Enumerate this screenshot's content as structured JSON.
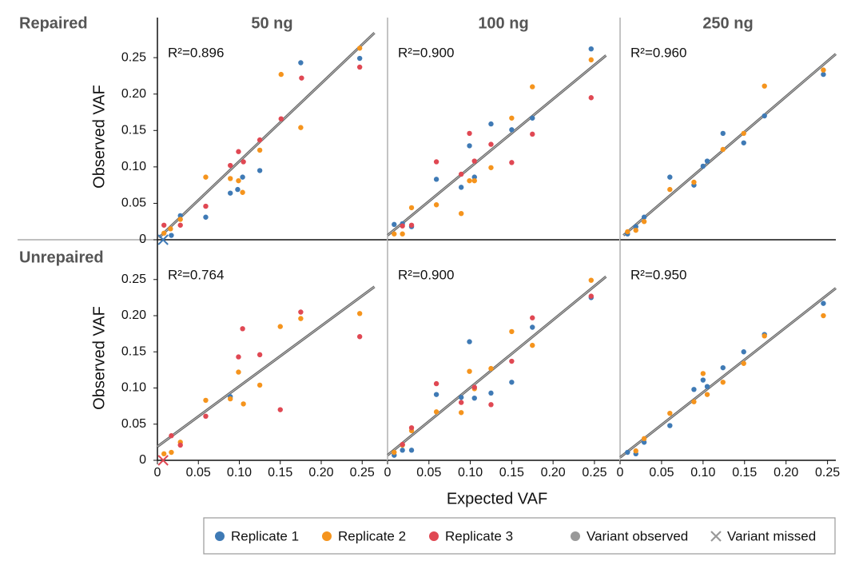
{
  "row_labels": [
    "Repaired",
    "Unrepaired"
  ],
  "legend": {
    "position": "bottom",
    "entries": [
      {
        "name": "Replicate 1",
        "color": "#3f7ab5",
        "marker": "circle"
      },
      {
        "name": "Replicate 2",
        "color": "#f5941d",
        "marker": "circle"
      },
      {
        "name": "Replicate 3",
        "color": "#e04853",
        "marker": "circle"
      },
      {
        "name": "Variant observed",
        "color": "#999999",
        "marker": "circle"
      },
      {
        "name": "Variant missed",
        "color": "#999999",
        "marker": "x"
      }
    ]
  },
  "chart_data": [
    {
      "type": "scatter",
      "title": "50 ng",
      "ylabel": "Observed VAF",
      "annotation": "R²=0.896",
      "xlim": [
        0,
        0.28
      ],
      "ylim": [
        0,
        0.305
      ],
      "yticks": [
        0,
        0.05,
        {
          "value": 0.1,
          "label": "0.10"
        },
        0.15,
        {
          "value": 0.2,
          "label": "0.20"
        },
        0.25
      ],
      "fit": {
        "x": [
          0.002,
          0.265
        ],
        "values": [
          0.003,
          0.284
        ]
      },
      "series": [
        {
          "x": [
            0.028,
            0.017,
            0.059,
            0.089,
            0.098,
            0.104,
            0.125,
            0.175,
            0.247
          ],
          "values": [
            0.033,
            0.006,
            0.031,
            0.064,
            0.069,
            0.086,
            0.095,
            0.243,
            0.249
          ],
          "missed_x": [
            0.007
          ],
          "missed_values": [
            0
          ]
        },
        {
          "x": [
            0.008,
            0.016,
            0.028,
            0.059,
            0.089,
            0.099,
            0.104,
            0.125,
            0.151,
            0.175,
            0.247
          ],
          "values": [
            0.009,
            0.015,
            0.028,
            0.086,
            0.084,
            0.081,
            0.065,
            0.123,
            0.227,
            0.154,
            0.263
          ]
        },
        {
          "x": [
            0.008,
            0.028,
            0.059,
            0.089,
            0.099,
            0.105,
            0.125,
            0.151,
            0.176,
            0.247
          ],
          "values": [
            0.02,
            0.02,
            0.046,
            0.102,
            0.121,
            0.107,
            0.137,
            0.166,
            0.222,
            0.237
          ]
        }
      ]
    },
    {
      "type": "scatter",
      "title": "100 ng",
      "annotation": "R²=0.900",
      "xlim": [
        0,
        0.28
      ],
      "ylim": [
        0,
        0.305
      ],
      "fit": {
        "x": [
          0,
          0.264
        ],
        "values": [
          0.006,
          0.253
        ]
      },
      "series": [
        {
          "x": [
            0.008,
            0.018,
            0.029,
            0.059,
            0.089,
            0.099,
            0.105,
            0.125,
            0.15,
            0.175,
            0.246
          ],
          "values": [
            0.021,
            0.022,
            0.018,
            0.083,
            0.072,
            0.129,
            0.086,
            0.159,
            0.151,
            0.167,
            0.262
          ]
        },
        {
          "x": [
            0.008,
            0.018,
            0.029,
            0.059,
            0.089,
            0.099,
            0.105,
            0.125,
            0.15,
            0.175,
            0.246
          ],
          "values": [
            0.008,
            0.008,
            0.044,
            0.048,
            0.036,
            0.081,
            0.081,
            0.099,
            0.167,
            0.21,
            0.247
          ]
        },
        {
          "x": [
            0.018,
            0.029,
            0.059,
            0.089,
            0.099,
            0.105,
            0.125,
            0.15,
            0.175,
            0.246
          ],
          "values": [
            0.019,
            0.02,
            0.107,
            0.09,
            0.146,
            0.108,
            0.131,
            0.106,
            0.145,
            0.195
          ]
        }
      ]
    },
    {
      "type": "scatter",
      "title": "250 ng",
      "annotation": "R²=0.960",
      "xlim": [
        0,
        0.26
      ],
      "ylim": [
        0,
        0.305
      ],
      "fit": {
        "x": [
          0.004,
          0.26
        ],
        "values": [
          0.006,
          0.255
        ]
      },
      "series": [
        {
          "x": [
            0.009,
            0.019,
            0.029,
            0.06,
            0.089,
            0.1,
            0.105,
            0.124,
            0.149,
            0.174,
            0.245
          ],
          "values": [
            0.008,
            0.018,
            0.031,
            0.086,
            0.075,
            0.101,
            0.108,
            0.146,
            0.133,
            0.17,
            0.227
          ]
        },
        {
          "x": [
            0.009,
            0.019,
            0.029,
            0.06,
            0.089,
            0.124,
            0.149,
            0.174,
            0.245
          ],
          "values": [
            0.011,
            0.013,
            0.025,
            0.069,
            0.079,
            0.124,
            0.146,
            0.211,
            0.233
          ]
        },
        {
          "x": [],
          "values": []
        }
      ]
    },
    {
      "type": "scatter",
      "ylabel": "Observed VAF",
      "annotation": "R²=0.764",
      "xlim": [
        0,
        0.28
      ],
      "ylim": [
        0,
        0.305
      ],
      "xticks": [
        0,
        0.05,
        {
          "value": 0.1,
          "label": "0.10"
        },
        0.15,
        {
          "value": 0.2,
          "label": "0.20"
        },
        0.25
      ],
      "yticks": [
        0,
        0.05,
        {
          "value": 0.1,
          "label": "0.10"
        },
        0.15,
        {
          "value": 0.2,
          "label": "0.20"
        },
        0.25
      ],
      "fit": {
        "x": [
          0,
          0.265
        ],
        "values": [
          0.019,
          0.24
        ]
      },
      "series": [
        {
          "x": [
            0.089
          ],
          "values": [
            0.088
          ]
        },
        {
          "x": [
            0.008,
            0.017,
            0.028,
            0.059,
            0.089,
            0.099,
            0.105,
            0.125,
            0.15,
            0.175,
            0.247
          ],
          "values": [
            0.009,
            0.011,
            0.025,
            0.083,
            0.085,
            0.122,
            0.078,
            0.104,
            0.185,
            0.196,
            0.203
          ]
        },
        {
          "x": [
            0.017,
            0.028,
            0.059,
            0.099,
            0.104,
            0.125,
            0.15,
            0.175,
            0.247
          ],
          "values": [
            0.034,
            0.021,
            0.061,
            0.143,
            0.182,
            0.146,
            0.07,
            0.205,
            0.171
          ],
          "missed_x": [
            0.007
          ],
          "missed_values": [
            0
          ]
        }
      ]
    },
    {
      "type": "scatter",
      "xlabel": "Expected VAF",
      "annotation": "R²=0.900",
      "xlim": [
        0,
        0.28
      ],
      "ylim": [
        0,
        0.305
      ],
      "xticks": [
        0,
        0.05,
        {
          "value": 0.1,
          "label": "0.10"
        },
        0.15,
        {
          "value": 0.2,
          "label": "0.20"
        },
        0.25
      ],
      "fit": {
        "x": [
          0,
          0.264
        ],
        "values": [
          0.007,
          0.254
        ]
      },
      "series": [
        {
          "x": [
            0.008,
            0.018,
            0.029,
            0.059,
            0.089,
            0.099,
            0.105,
            0.125,
            0.15,
            0.175,
            0.246
          ],
          "values": [
            0.007,
            0.014,
            0.014,
            0.091,
            0.087,
            0.164,
            0.086,
            0.093,
            0.108,
            0.184,
            0.225
          ]
        },
        {
          "x": [
            0.008,
            0.018,
            0.029,
            0.059,
            0.089,
            0.099,
            0.105,
            0.125,
            0.15,
            0.175,
            0.246
          ],
          "values": [
            0.011,
            0.021,
            0.041,
            0.067,
            0.066,
            0.123,
            0.099,
            0.127,
            0.178,
            0.159,
            0.249
          ]
        },
        {
          "x": [
            0.018,
            0.029,
            0.059,
            0.089,
            0.105,
            0.125,
            0.15,
            0.175,
            0.246
          ],
          "values": [
            0.022,
            0.045,
            0.106,
            0.08,
            0.101,
            0.077,
            0.137,
            0.197,
            0.227
          ]
        }
      ]
    },
    {
      "type": "scatter",
      "annotation": "R²=0.950",
      "xlim": [
        0,
        0.26
      ],
      "ylim": [
        0,
        0.305
      ],
      "xticks": [
        0,
        0.05,
        {
          "value": 0.1,
          "label": "0.10"
        },
        0.15,
        {
          "value": 0.2,
          "label": "0.20"
        },
        0.25
      ],
      "fit": {
        "x": [
          0,
          0.26
        ],
        "values": [
          0.004,
          0.238
        ]
      },
      "series": [
        {
          "x": [
            0.009,
            0.019,
            0.029,
            0.06,
            0.089,
            0.1,
            0.105,
            0.124,
            0.149,
            0.174,
            0.245
          ],
          "values": [
            0.011,
            0.009,
            0.025,
            0.048,
            0.098,
            0.111,
            0.102,
            0.128,
            0.15,
            0.174,
            0.217
          ]
        },
        {
          "x": [
            0.019,
            0.029,
            0.06,
            0.089,
            0.1,
            0.105,
            0.124,
            0.149,
            0.174,
            0.245
          ],
          "values": [
            0.013,
            0.03,
            0.065,
            0.081,
            0.12,
            0.091,
            0.108,
            0.134,
            0.172,
            0.2
          ]
        },
        {
          "x": [],
          "values": []
        }
      ]
    }
  ]
}
